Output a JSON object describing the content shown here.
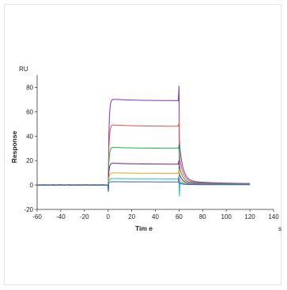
{
  "chart_data": {
    "type": "line",
    "title": "",
    "xlabel": "Tim e",
    "ylabel": "Response",
    "x_unit": "s",
    "y_unit": "RU",
    "xlim": [
      -60,
      140
    ],
    "ylim": [
      -20,
      90
    ],
    "x_ticks": [
      -60,
      -40,
      -20,
      0,
      20,
      40,
      60,
      80,
      100,
      120,
      140
    ],
    "y_ticks": [
      -20,
      0,
      20,
      40,
      60,
      80
    ],
    "grid": false,
    "legend": "none",
    "x_data_range": [
      -60,
      120
    ],
    "association_start": 0,
    "dissociation_start": 60,
    "series": [
      {
        "color": "#7b2fd6",
        "plateau": 69,
        "start_value": 70.5,
        "end_value": 1.0
      },
      {
        "color": "#e8533a",
        "plateau": 48,
        "start_value": 49.5,
        "end_value": 0.9
      },
      {
        "color": "#19b34a",
        "plateau": 30,
        "start_value": 31.0,
        "end_value": 0.8
      },
      {
        "color": "#7a1a7a",
        "plateau": 17,
        "start_value": 18.0,
        "end_value": 0.6
      },
      {
        "color": "#e6a21a",
        "plateau": 9.5,
        "start_value": 10.0,
        "end_value": 0.5
      },
      {
        "color": "#19c0d0",
        "plateau": 5,
        "start_value": 5.3,
        "end_value": 0.3
      },
      {
        "color": "#3a5bd8",
        "plateau": 2.5,
        "start_value": 2.7,
        "end_value": 0.2
      }
    ]
  }
}
